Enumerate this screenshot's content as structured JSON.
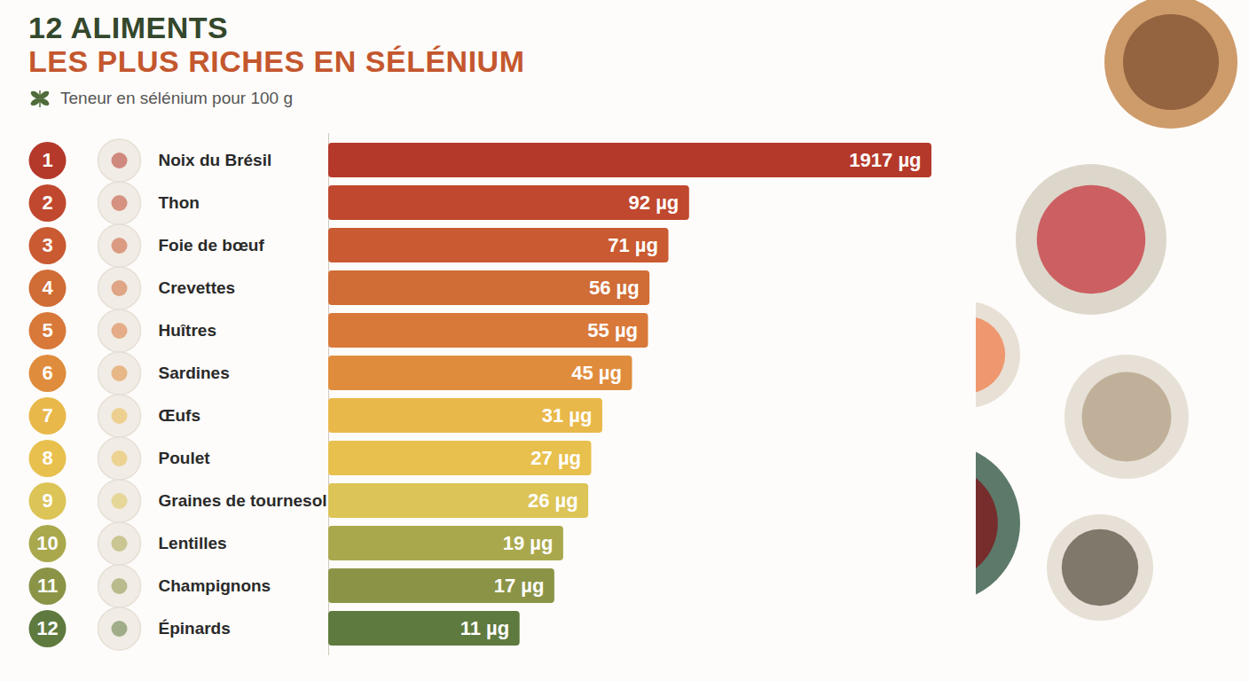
{
  "chart_data": {
    "type": "bar",
    "title": [
      "12 ALIMENTS",
      "LES PLUS RICHES EN SÉLÉNIUM"
    ],
    "subtitle": "Teneur en sélénium pour 100 g",
    "orientation": "horizontal",
    "log": "x",
    "categories": [
      "Noix du Brésil",
      "Thon",
      "Foie de bœuf",
      "Crevettes",
      "Huîtres",
      "Sardines",
      "Œufs",
      "Poulet",
      "Graines de tournesol",
      "Lentilles",
      "Champignons",
      "Épinards"
    ],
    "ranks": [
      1,
      2,
      3,
      4,
      5,
      6,
      7,
      8,
      9,
      10,
      11,
      12
    ],
    "values": [
      1917,
      92,
      71,
      56,
      55,
      45,
      31,
      27,
      26,
      19,
      17,
      11
    ],
    "value_labels": [
      "1917 µg",
      "92 µg",
      "71 µg",
      "56 µg",
      "55 µg",
      "45 µg",
      "31 µg",
      "27 µg",
      "26 µg",
      "19 µg",
      "17 µg",
      "11 µg"
    ],
    "colors": [
      "#b5392a",
      "#c0482e",
      "#c95a31",
      "#d06c35",
      "#d8793a",
      "#e08c3d",
      "#e9b84a",
      "#e8c04e",
      "#dcc457",
      "#a9a84c",
      "#8b9446",
      "#5f7a3e"
    ],
    "xlim": [
      1,
      1917
    ],
    "xticks": [],
    "tick_labels": false,
    "grid": false,
    "data_labels": true
  }
}
